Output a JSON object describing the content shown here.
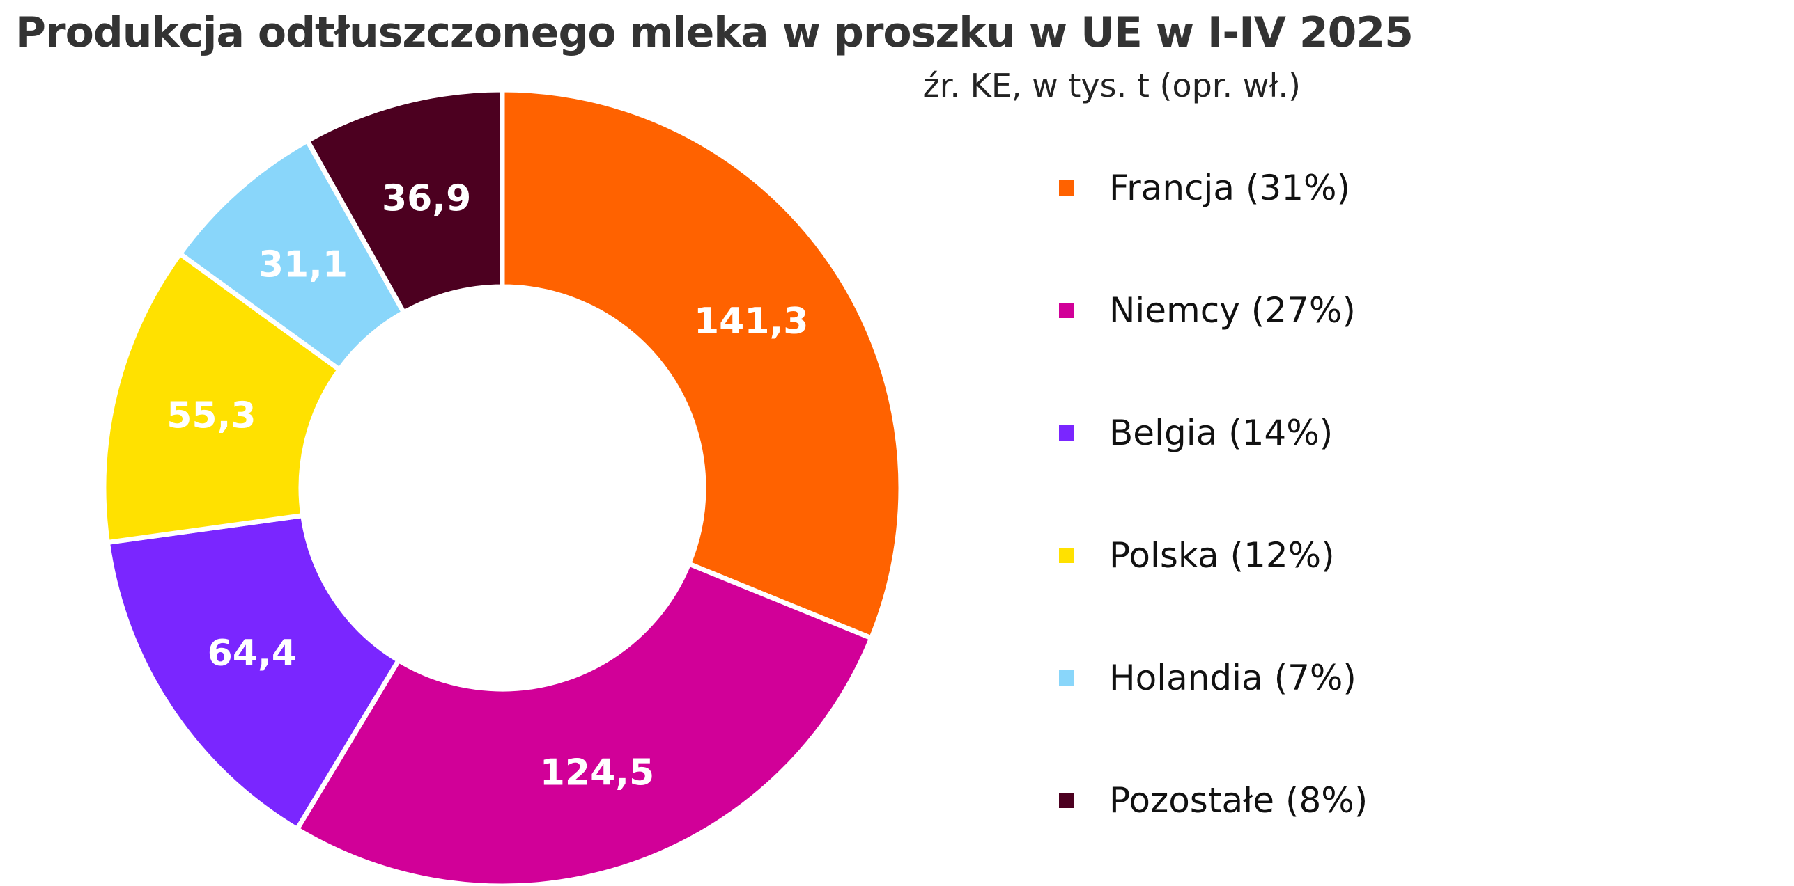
{
  "chart_data": {
    "type": "pie",
    "variant": "donut",
    "title": "Produkcja odtłuszczonego mleka w proszku w UE w I-IV 2025",
    "subtitle": "źr. KE, w tys. t (opr. wł.)",
    "unit": "tys. t",
    "legend_position": "right",
    "slices": [
      {
        "name": "Francja",
        "value": 141.3,
        "value_label": "141,3",
        "legend_label": "Francja (31%)",
        "color": "#FF6200"
      },
      {
        "name": "Niemcy",
        "value": 124.5,
        "value_label": "124,5",
        "legend_label": "Niemcy (27%)",
        "color": "#D10098"
      },
      {
        "name": "Belgia",
        "value": 64.4,
        "value_label": "64,4",
        "legend_label": "Belgia (14%)",
        "color": "#7A26FF"
      },
      {
        "name": "Polska",
        "value": 55.3,
        "value_label": "55,3",
        "legend_label": "Polska (12%)",
        "color": "#FFE100"
      },
      {
        "name": "Holandia",
        "value": 31.1,
        "value_label": "31,1",
        "legend_label": "Holandia (7%)",
        "color": "#89D6FA"
      },
      {
        "name": "Pozostałe",
        "value": 36.9,
        "value_label": "36,9",
        "legend_label": "Pozostałe (8%)",
        "color": "#4C0020"
      }
    ]
  }
}
